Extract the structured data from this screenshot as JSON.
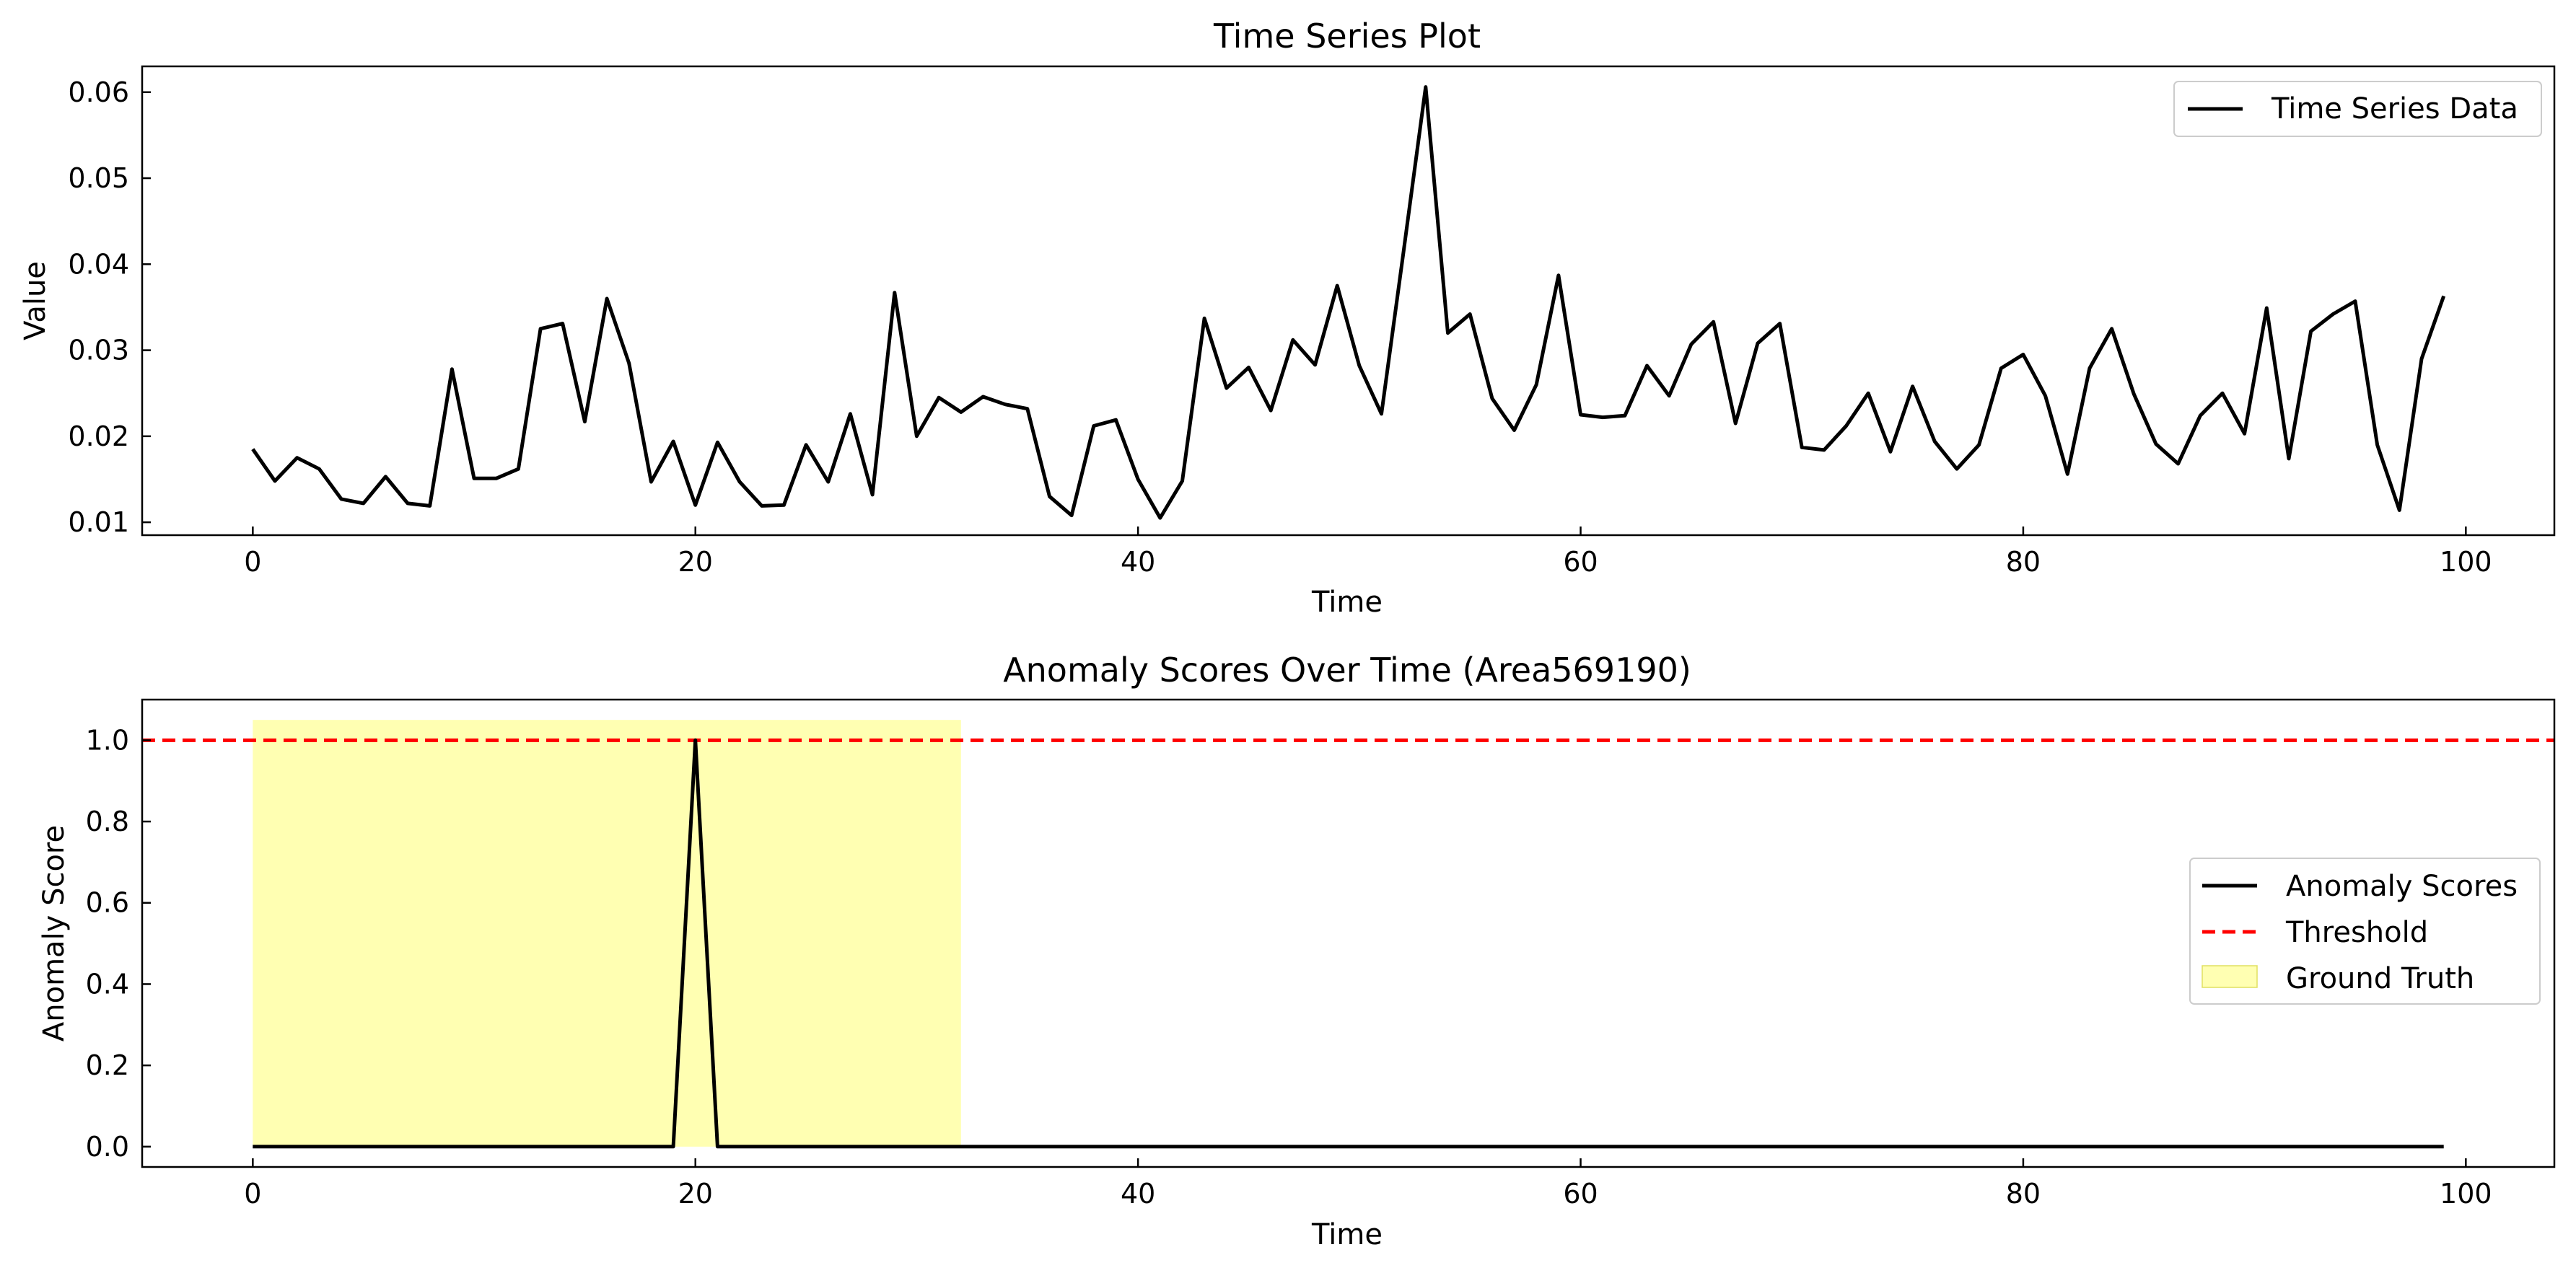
{
  "chart_data": [
    {
      "type": "line",
      "title": "Time Series Plot",
      "xlabel": "Time",
      "ylabel": "Value",
      "xlim": [
        -5,
        104
      ],
      "ylim": [
        0.0085,
        0.063
      ],
      "xticks": [
        0,
        20,
        40,
        60,
        80,
        100
      ],
      "yticks": [
        0.01,
        0.02,
        0.03,
        0.04,
        0.05,
        0.06
      ],
      "grid": false,
      "legend_position": "top-right",
      "series": [
        {
          "name": "Time Series Data",
          "color": "#000000",
          "style": "solid",
          "x_start": 0,
          "values": [
            0.0185,
            0.0148,
            0.0175,
            0.0162,
            0.0127,
            0.0122,
            0.0153,
            0.0122,
            0.0119,
            0.0278,
            0.0151,
            0.0151,
            0.0162,
            0.0325,
            0.0331,
            0.0217,
            0.036,
            0.0285,
            0.0147,
            0.0194,
            0.012,
            0.0193,
            0.0147,
            0.0119,
            0.012,
            0.019,
            0.0147,
            0.0226,
            0.0132,
            0.0367,
            0.02,
            0.0245,
            0.0228,
            0.0246,
            0.0237,
            0.0232,
            0.013,
            0.0108,
            0.0212,
            0.0219,
            0.015,
            0.0105,
            0.0148,
            0.0337,
            0.0256,
            0.028,
            0.023,
            0.0312,
            0.0283,
            0.0375,
            0.0282,
            0.0226,
            0.0415,
            0.0606,
            0.032,
            0.0342,
            0.0244,
            0.0207,
            0.026,
            0.0387,
            0.0225,
            0.0222,
            0.0224,
            0.0282,
            0.0247,
            0.0307,
            0.0333,
            0.0215,
            0.0308,
            0.0331,
            0.0187,
            0.0184,
            0.0212,
            0.025,
            0.0182,
            0.0258,
            0.0194,
            0.0162,
            0.019,
            0.0279,
            0.0295,
            0.0247,
            0.0156,
            0.0279,
            0.0325,
            0.0249,
            0.0191,
            0.0168,
            0.0224,
            0.025,
            0.0203,
            0.0349,
            0.0174,
            0.0322,
            0.0342,
            0.0357,
            0.019,
            0.0114,
            0.029,
            0.0363
          ]
        }
      ]
    },
    {
      "type": "line",
      "title": "Anomaly Scores Over Time (Area569190)",
      "xlabel": "Time",
      "ylabel": "Anomaly Score",
      "xlim": [
        -5,
        104
      ],
      "ylim": [
        -0.05,
        1.1
      ],
      "xticks": [
        0,
        20,
        40,
        60,
        80,
        100
      ],
      "yticks": [
        "0.0",
        "0.2",
        "0.4",
        "0.6",
        "0.8",
        "1.0"
      ],
      "grid": false,
      "legend_position": "center-right",
      "series": [
        {
          "name": "Anomaly Scores",
          "color": "#000000",
          "style": "solid",
          "x": [
            0,
            19,
            20,
            21,
            99
          ],
          "values": [
            0,
            0,
            1,
            0,
            0
          ]
        },
        {
          "name": "Threshold",
          "color": "#ff0000",
          "style": "dashed",
          "y": 1.0
        },
        {
          "name": "Ground Truth",
          "color": "#ffff66",
          "style": "shaded-region",
          "x_range": [
            0,
            32
          ],
          "y_range": [
            0,
            1.05
          ]
        }
      ]
    }
  ]
}
